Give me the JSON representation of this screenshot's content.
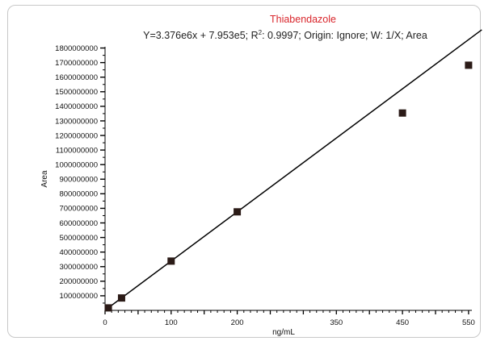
{
  "chart_data": {
    "type": "scatter",
    "title": "Thiabendazole",
    "subtitle": {
      "equation": "Y=3.376e6x + 7.953e5; R",
      "sup": "2",
      "rest": ": 0.9997; Origin: Ignore; W: 1/X; Area"
    },
    "xlabel": "ng/mL",
    "ylabel": "Area",
    "xlim": [
      0,
      600
    ],
    "ylim": [
      0,
      1850000000
    ],
    "x_ticks": [
      0,
      50,
      100,
      150,
      200,
      250,
      300,
      350,
      400,
      450,
      500,
      550
    ],
    "x_tick_labels": [
      {
        "value": 0,
        "label": "0"
      },
      {
        "value": 100,
        "label": "100"
      },
      {
        "value": 200,
        "label": "200"
      },
      {
        "value": 350,
        "label": "350"
      },
      {
        "value": 450,
        "label": "450"
      },
      {
        "value": 550,
        "label": "550"
      }
    ],
    "y_ticks": [
      "100000000",
      "200000000",
      "300000000",
      "400000000",
      "500000000",
      "600000000",
      "700000000",
      "800000000",
      "900000000",
      "1000000000",
      "1100000000",
      "1200000000",
      "1300000000",
      "1400000000",
      "1500000000",
      "1600000000",
      "1700000000",
      "1800000000"
    ],
    "points": [
      {
        "x": 5,
        "y": 17000000
      },
      {
        "x": 25,
        "y": 85000000
      },
      {
        "x": 100,
        "y": 338000000
      },
      {
        "x": 200,
        "y": 676000000
      },
      {
        "x": 450,
        "y": 1354000000
      },
      {
        "x": 550,
        "y": 1682000000
      }
    ],
    "fit_line": {
      "slope": 3376000,
      "intercept": 795300
    },
    "grid": false,
    "colors": {
      "title": "#d9262c",
      "marker": "#2b1b17",
      "line": "#000000"
    }
  }
}
